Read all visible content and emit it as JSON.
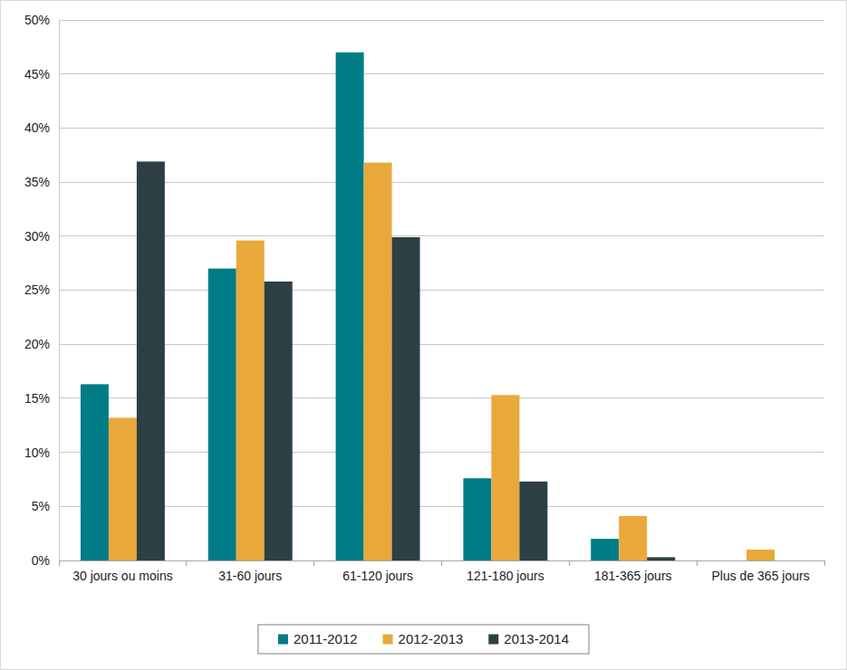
{
  "chart_data": {
    "type": "bar",
    "categories": [
      "30 jours ou moins",
      "31-60 jours",
      "61-120 jours",
      "121-180 jours",
      "181-365 jours",
      "Plus de 365 jours"
    ],
    "series": [
      {
        "name": "2011-2012",
        "color": "#007c87",
        "values": [
          16.3,
          27.0,
          47.0,
          7.6,
          2.0,
          0
        ]
      },
      {
        "name": "2012-2013",
        "color": "#e9a83a",
        "values": [
          13.2,
          29.6,
          36.8,
          15.3,
          4.1,
          1.0
        ]
      },
      {
        "name": "2013-2014",
        "color": "#2c3f44",
        "values": [
          36.9,
          25.8,
          29.9,
          7.3,
          0.3,
          0
        ]
      }
    ],
    "ylim": [
      0,
      50
    ],
    "yticks": [
      {
        "value": 0,
        "label": "0%"
      },
      {
        "value": 5,
        "label": "5%"
      },
      {
        "value": 10,
        "label": "10%"
      },
      {
        "value": 15,
        "label": "15%"
      },
      {
        "value": 20,
        "label": "20%"
      },
      {
        "value": 25,
        "label": "25%"
      },
      {
        "value": 30,
        "label": "30%"
      },
      {
        "value": 35,
        "label": "35%"
      },
      {
        "value": 40,
        "label": "40%"
      },
      {
        "value": 45,
        "label": "45%"
      },
      {
        "value": 50,
        "label": "50%"
      }
    ],
    "grid": true,
    "legend": "bottom"
  }
}
